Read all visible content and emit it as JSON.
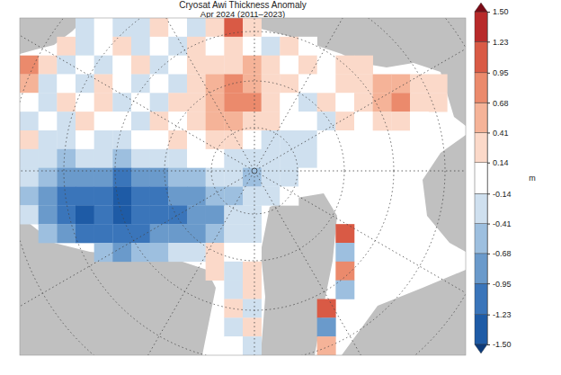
{
  "chart_data": {
    "type": "heatmap",
    "title": "Cryosat Awi Thickness Anomaly",
    "subtitle": "Apr 2024 (2011–2023)",
    "cells": [
      [
        null,
        null,
        null,
        -0.2,
        0.1,
        -0.3,
        -0.2,
        0.2,
        -0.1,
        -0.3,
        0.4,
        1.1,
        0.3,
        null,
        null,
        null,
        null,
        null,
        null,
        null,
        null,
        null,
        null,
        null
      ],
      [
        null,
        null,
        0.2,
        -0.3,
        -0.1,
        0.3,
        -0.2,
        0.1,
        -0.4,
        0.2,
        -0.1,
        0.3,
        0.1,
        -0.2,
        0.2,
        0.1,
        null,
        null,
        null,
        null,
        null,
        null,
        null,
        null
      ],
      [
        0.8,
        0.3,
        -0.2,
        0.1,
        -0.3,
        -0.1,
        0.2,
        -0.2,
        0.1,
        0.3,
        0.4,
        0.2,
        0.5,
        0.3,
        -0.1,
        0.2,
        0.1,
        0.4,
        0.3,
        null,
        null,
        null,
        null,
        null
      ],
      [
        0.6,
        -0.2,
        0.1,
        -0.4,
        0.2,
        -0.1,
        -0.3,
        0.1,
        -0.2,
        0.2,
        0.5,
        0.7,
        0.6,
        0.4,
        0.2,
        -0.1,
        0.1,
        0.3,
        0.4,
        0.6,
        0.5,
        0.3,
        0.2,
        null
      ],
      [
        0.1,
        -0.3,
        0.2,
        -0.1,
        0.3,
        -0.2,
        0.1,
        -0.2,
        0.3,
        0.4,
        0.6,
        0.8,
        0.7,
        0.3,
        0.1,
        -0.2,
        0.2,
        0.1,
        0.3,
        0.5,
        0.7,
        0.4,
        0.3,
        null
      ],
      [
        -0.2,
        0.1,
        -0.3,
        0.2,
        -0.1,
        0.1,
        -0.2,
        0.2,
        0.1,
        0.4,
        0.5,
        0.6,
        0.4,
        0.2,
        -0.1,
        0.1,
        -0.2,
        0.2,
        0.1,
        0.3,
        0.2,
        -0.1,
        null,
        null
      ],
      [
        0.2,
        -0.4,
        -0.2,
        0.1,
        -0.3,
        -0.2,
        0.1,
        -0.1,
        0.2,
        0.1,
        0.3,
        0.2,
        0.1,
        -0.2,
        -0.3,
        -0.2,
        -0.1,
        0.1,
        null,
        null,
        null,
        null,
        null,
        null
      ],
      [
        -0.3,
        -0.2,
        -0.5,
        -0.3,
        -0.4,
        -0.6,
        -0.3,
        -0.2,
        -0.4,
        -0.1,
        0.1,
        -0.2,
        -0.3,
        -0.4,
        -0.2,
        -0.3,
        0.1,
        null,
        null,
        null,
        null,
        null,
        null,
        null
      ],
      [
        -0.4,
        -0.6,
        -0.7,
        -0.9,
        -0.8,
        -1.0,
        -0.7,
        -0.8,
        -0.5,
        -0.6,
        -0.4,
        -0.3,
        -0.5,
        -0.2,
        -0.3,
        -0.1,
        null,
        null,
        null,
        null,
        null,
        null,
        null,
        null
      ],
      [
        -0.5,
        -0.8,
        -1.0,
        -1.2,
        -1.1,
        -1.3,
        -1.0,
        -1.1,
        -0.9,
        -0.8,
        -0.6,
        -0.5,
        -0.3,
        -0.2,
        -0.1,
        null,
        null,
        null,
        null,
        null,
        null,
        null,
        null,
        null
      ],
      [
        -0.3,
        -0.9,
        -1.1,
        -1.3,
        -1.2,
        -1.4,
        -1.2,
        -1.0,
        -1.1,
        -0.9,
        -0.7,
        -0.4,
        -0.2,
        null,
        null,
        null,
        null,
        null,
        null,
        null,
        null,
        null,
        null,
        null
      ],
      [
        null,
        -0.6,
        -0.9,
        -1.1,
        -1.0,
        -1.2,
        -1.1,
        -0.9,
        -0.8,
        -0.7,
        -0.5,
        -0.3,
        -0.2,
        null,
        null,
        null,
        null,
        1.0,
        null,
        null,
        null,
        null,
        null,
        null
      ],
      [
        null,
        null,
        null,
        null,
        -0.5,
        -0.7,
        -0.6,
        -0.5,
        -0.4,
        -0.3,
        0.2,
        0.1,
        -0.1,
        null,
        null,
        null,
        null,
        -0.6,
        null,
        null,
        null,
        null,
        null,
        null
      ],
      [
        null,
        null,
        null,
        null,
        null,
        null,
        null,
        null,
        null,
        null,
        0.3,
        -0.2,
        0.2,
        null,
        null,
        null,
        null,
        0.8,
        null,
        null,
        null,
        null,
        null,
        null
      ],
      [
        null,
        null,
        null,
        null,
        null,
        null,
        null,
        null,
        null,
        null,
        null,
        -0.3,
        0.4,
        null,
        null,
        null,
        null,
        -0.5,
        null,
        null,
        null,
        null,
        null,
        null
      ],
      [
        null,
        null,
        null,
        null,
        null,
        null,
        null,
        null,
        null,
        null,
        null,
        0.2,
        -0.4,
        null,
        null,
        null,
        1.1,
        null,
        null,
        null,
        null,
        null,
        null,
        null
      ],
      [
        null,
        null,
        null,
        null,
        null,
        null,
        null,
        null,
        null,
        null,
        null,
        -0.2,
        0.3,
        null,
        null,
        null,
        -0.7,
        null,
        null,
        null,
        null,
        null,
        null,
        null
      ],
      [
        null,
        null,
        null,
        null,
        null,
        null,
        null,
        null,
        null,
        null,
        null,
        0.1,
        -0.2,
        null,
        null,
        null,
        0.6,
        null,
        null,
        null,
        null,
        null,
        null,
        null
      ]
    ],
    "colorbar": {
      "label": "m",
      "range": [
        -1.5,
        1.5
      ],
      "ticks": [
        {
          "value": -1.5,
          "label": "-1.50"
        },
        -1.23,
        -0.95,
        -0.68,
        -0.41,
        -0.14,
        0.14,
        0.41,
        0.68,
        0.95,
        1.23,
        {
          "value": 1.5,
          "label": "1.50"
        }
      ],
      "colors": [
        "#0d3b7a",
        "#1e5ba6",
        "#3a75ba",
        "#6a9acb",
        "#9dbfdf",
        "#cfe0ef",
        "#ffffff",
        "#fbd9c9",
        "#f5b398",
        "#eb8a6c",
        "#d95a45",
        "#b82a2a",
        "#7a0b16"
      ]
    }
  }
}
